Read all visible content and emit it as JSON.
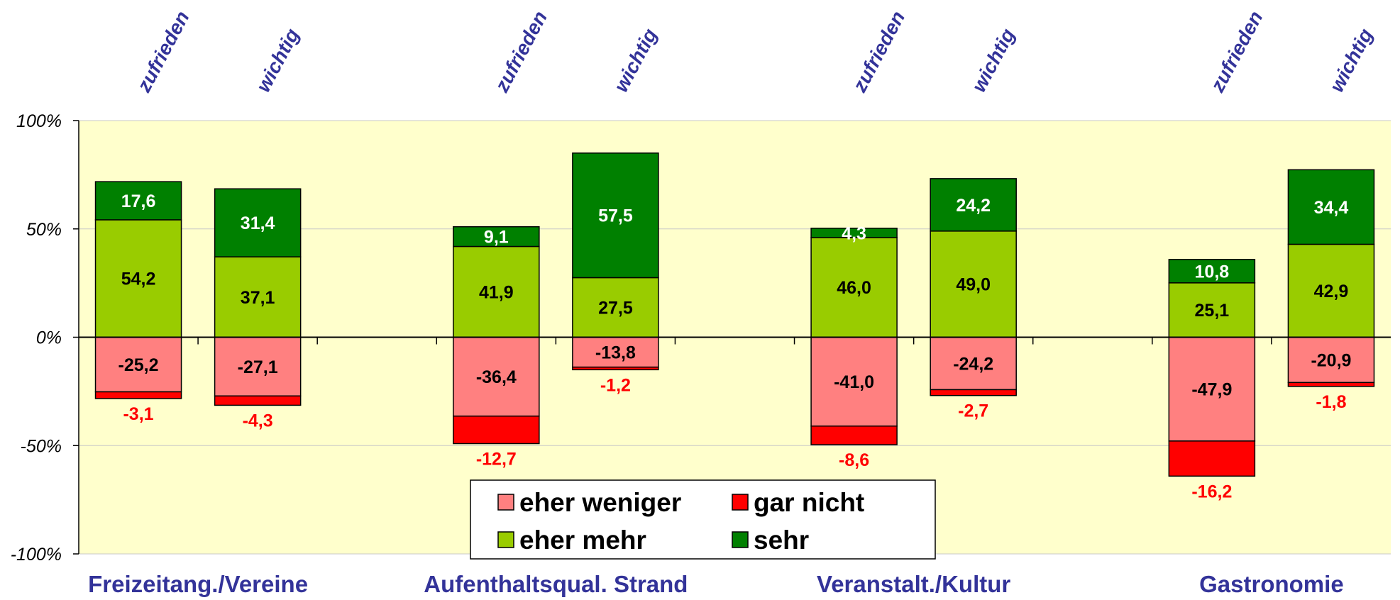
{
  "chart_data": {
    "type": "bar",
    "stacked": true,
    "categories": [
      "zufrieden",
      "wichtig",
      "zufrieden",
      "wichtig",
      "zufrieden",
      "wichtig",
      "zufrieden",
      "wichtig"
    ],
    "groups": [
      "Freizeitang./Vereine",
      "Aufenthaltsqual. Strand",
      "Veranstalt./Kultur",
      "Gastronomie"
    ],
    "series": [
      {
        "name": "eher weniger",
        "color": "#ff8080",
        "values": [
          -25.2,
          -27.1,
          -36.4,
          -13.8,
          -41.0,
          -24.2,
          -47.9,
          -20.9
        ],
        "value_labels": [
          "-25,2",
          "-27,1",
          "-36,4",
          "-13,8",
          "-41,0",
          "-24,2",
          "-47,9",
          "-20,9"
        ]
      },
      {
        "name": "gar nicht",
        "color": "#ff0000",
        "values": [
          -3.1,
          -4.3,
          -12.7,
          -1.2,
          -8.6,
          -2.7,
          -16.2,
          -1.8
        ],
        "value_labels": [
          "-3,1",
          "-4,3",
          "-12,7",
          "-1,2",
          "-8,6",
          "-2,7",
          "-16,2",
          "-1,8"
        ]
      },
      {
        "name": "eher mehr",
        "color": "#99cc00",
        "values": [
          54.2,
          37.1,
          41.9,
          27.5,
          46.0,
          49.0,
          25.1,
          42.9
        ],
        "value_labels": [
          "54,2",
          "37,1",
          "41,9",
          "27,5",
          "46,0",
          "49,0",
          "25,1",
          "42,9"
        ]
      },
      {
        "name": "sehr",
        "color": "#008000",
        "values": [
          17.6,
          31.4,
          9.1,
          57.5,
          4.3,
          24.2,
          10.8,
          34.4
        ],
        "value_labels": [
          "17,6",
          "31,4",
          "9,1",
          "57,5",
          "4,3",
          "24,2",
          "10,8",
          "34,4"
        ]
      }
    ],
    "ylim": [
      -100,
      100
    ],
    "yticks": [
      {
        "value": -100,
        "label": "-100%"
      },
      {
        "value": -50,
        "label": "-50%"
      },
      {
        "value": 0,
        "label": "0%"
      },
      {
        "value": 50,
        "label": "50%"
      },
      {
        "value": 100,
        "label": "100%"
      }
    ],
    "grid": true,
    "legend": "bottom"
  }
}
